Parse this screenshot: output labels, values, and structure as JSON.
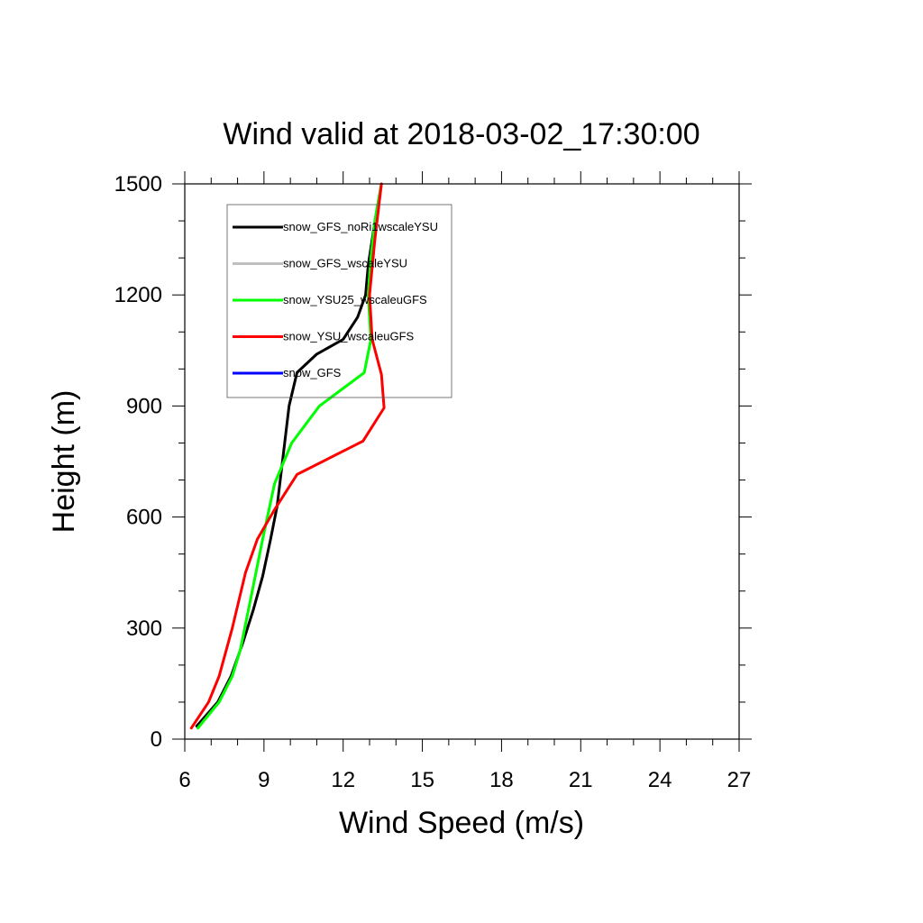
{
  "chart_data": {
    "type": "line",
    "title": "Wind valid at 2018-03-02_17:30:00",
    "xlabel": "Wind Speed (m/s)",
    "ylabel": "Height (m)",
    "xlim": [
      6,
      27
    ],
    "ylim": [
      0,
      1500
    ],
    "xticks": [
      6,
      9,
      12,
      15,
      18,
      21,
      24,
      27
    ],
    "yticks": [
      0,
      300,
      600,
      900,
      1200,
      1500
    ],
    "x_minor_step": 1,
    "y_minor_step": 100,
    "grid": false,
    "legend_position": "top-left",
    "series": [
      {
        "name": "snow_GFS_noRi1wscaleYSU",
        "color": "#000000",
        "x": [
          6.45,
          7.25,
          7.75,
          8.2,
          8.6,
          8.95,
          9.25,
          9.5,
          9.65,
          9.8,
          9.95,
          10.25,
          11.0,
          12.0,
          12.55,
          12.85,
          12.95,
          13.1,
          13.25,
          13.45
        ],
        "y": [
          35,
          100,
          170,
          260,
          350,
          440,
          540,
          630,
          720,
          810,
          900,
          990,
          1040,
          1080,
          1140,
          1200,
          1280,
          1350,
          1420,
          1500
        ]
      },
      {
        "name": "snow_GFS_wscaleYSU",
        "color": "#bfbfbf",
        "x": [
          6.5,
          7.3,
          7.8,
          8.1,
          8.5,
          8.95,
          9.4,
          10.05,
          11.1,
          12.8,
          13.05,
          12.95,
          13.05,
          13.2,
          13.45
        ],
        "y": [
          30,
          100,
          170,
          240,
          380,
          540,
          690,
          800,
          900,
          990,
          1080,
          1200,
          1300,
          1400,
          1500
        ]
      },
      {
        "name": "snow_YSU25_wscaleuGFS",
        "color": "#00ff00",
        "x": [
          6.5,
          7.3,
          7.8,
          8.1,
          8.5,
          8.95,
          9.4,
          10.05,
          11.1,
          12.8,
          13.05,
          12.95,
          13.05,
          13.2,
          13.45
        ],
        "y": [
          30,
          100,
          170,
          240,
          380,
          540,
          690,
          800,
          900,
          990,
          1080,
          1200,
          1300,
          1400,
          1500
        ]
      },
      {
        "name": "snow_YSU_wscaleuGFS",
        "color": "#ff0000",
        "x": [
          6.25,
          6.9,
          7.3,
          7.8,
          8.3,
          8.75,
          9.4,
          10.25,
          12.75,
          13.55,
          13.45,
          13.1,
          13.0,
          13.2,
          13.45
        ],
        "y": [
          30,
          100,
          170,
          300,
          450,
          540,
          620,
          715,
          805,
          895,
          985,
          1080,
          1200,
          1350,
          1500
        ]
      },
      {
        "name": "snow_GFS",
        "color": "#0000ff",
        "x": [],
        "y": []
      }
    ]
  }
}
